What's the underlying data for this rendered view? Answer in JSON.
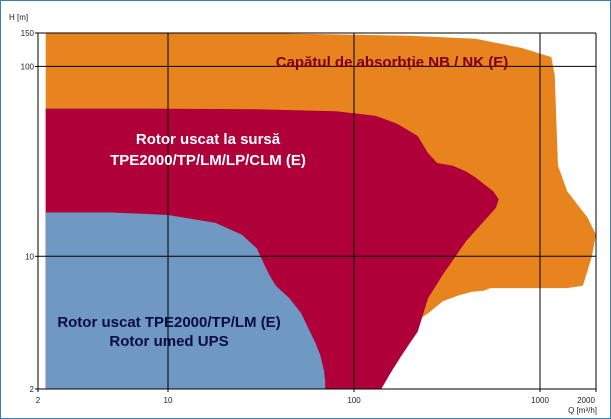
{
  "chart_data": {
    "type": "area",
    "xlabel": "Q [m³/h]",
    "ylabel": "H [m]",
    "x_scale": "log",
    "y_scale": "log",
    "xlim": [
      2,
      2000
    ],
    "ylim": [
      2,
      150
    ],
    "x_ticks": [
      {
        "value": 2,
        "label": "2"
      },
      {
        "value": 10,
        "label": "10"
      },
      {
        "value": 100,
        "label": "100"
      },
      {
        "value": 1000,
        "label": "1000"
      },
      {
        "value": 2000,
        "label": "2000"
      }
    ],
    "y_ticks": [
      {
        "value": 2,
        "label": "2"
      },
      {
        "value": 10,
        "label": "10"
      },
      {
        "value": 100,
        "label": "100"
      },
      {
        "value": 150,
        "label": "150"
      }
    ],
    "grid": true,
    "colors": {
      "NB": "#e8841e",
      "TPE": "#b0003a",
      "UPS": "#6f98c3",
      "grid": "#000000",
      "frame": "#3a7fae"
    },
    "regions": [
      {
        "id": "NB",
        "label": "Capătul de absorbție NB / NK (E)",
        "label_color": "#7a0020",
        "points": [
          [
            2.2,
            150
          ],
          [
            6,
            150
          ],
          [
            30,
            152
          ],
          [
            200,
            145
          ],
          [
            450,
            140
          ],
          [
            800,
            125
          ],
          [
            1150,
            112
          ],
          [
            1200,
            90
          ],
          [
            1250,
            30
          ],
          [
            1400,
            22
          ],
          [
            1800,
            16
          ],
          [
            2000,
            13
          ],
          [
            1900,
            10
          ],
          [
            1700,
            7
          ],
          [
            1400,
            6.8
          ],
          [
            540,
            6.8
          ],
          [
            500,
            6.6
          ],
          [
            430,
            6.5
          ],
          [
            360,
            6.2
          ],
          [
            300,
            5.8
          ],
          [
            250,
            5
          ],
          [
            220,
            4.6
          ],
          [
            200,
            4.2
          ],
          [
            170,
            3
          ],
          [
            150,
            2.5
          ],
          [
            130,
            2
          ],
          [
            2.2,
            2
          ]
        ]
      },
      {
        "id": "TPE",
        "label": "Rotor uscat la sursă TPE2000/TP/LM/LP/CLM (E)",
        "label_color": "#ffffff",
        "points": [
          [
            2.2,
            60
          ],
          [
            8,
            60
          ],
          [
            30,
            59.5
          ],
          [
            80,
            58
          ],
          [
            130,
            55
          ],
          [
            170,
            50
          ],
          [
            220,
            43
          ],
          [
            250,
            35
          ],
          [
            280,
            31
          ],
          [
            340,
            30
          ],
          [
            400,
            28
          ],
          [
            450,
            26
          ],
          [
            500,
            24
          ],
          [
            560,
            22
          ],
          [
            600,
            20
          ],
          [
            580,
            18
          ],
          [
            400,
            12
          ],
          [
            300,
            8
          ],
          [
            250,
            6
          ],
          [
            220,
            4
          ],
          [
            200,
            3.5
          ],
          [
            180,
            3
          ],
          [
            160,
            2.5
          ],
          [
            140,
            2
          ],
          [
            2.2,
            2
          ]
        ]
      },
      {
        "id": "UPS",
        "label": "Rotor uscat TPE2000/TP/LM (E) Rotor umed UPS",
        "label_color": "#0a0a45",
        "points": [
          [
            2.2,
            17
          ],
          [
            5,
            17
          ],
          [
            10,
            16.5
          ],
          [
            18,
            15
          ],
          [
            25,
            13
          ],
          [
            30,
            11
          ],
          [
            33,
            9
          ],
          [
            35,
            8
          ],
          [
            38,
            7
          ],
          [
            45,
            6
          ],
          [
            52,
            5
          ],
          [
            58,
            4
          ],
          [
            62,
            3.5
          ],
          [
            66,
            3
          ],
          [
            69,
            2.5
          ],
          [
            70,
            2.2
          ],
          [
            70,
            2
          ],
          [
            2.2,
            2
          ]
        ]
      }
    ]
  }
}
